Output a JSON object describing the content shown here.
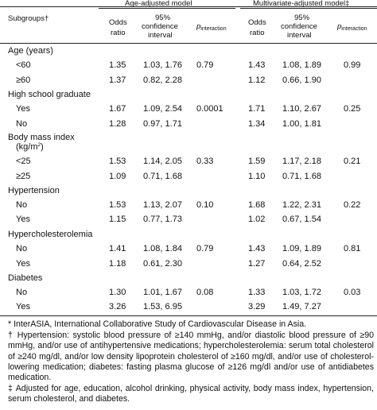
{
  "header": {
    "subgroups_label": "Subgroups†",
    "age_model_title": "Age-adjusted model",
    "multi_model_title": "Multivariate-adjusted model‡",
    "odds_label_1": "Odds",
    "odds_label_2": "ratio",
    "ci_label_1": "95%",
    "ci_label_2": "confidence",
    "ci_label_3": "interval",
    "p_label": "p",
    "p_sub": "interaction"
  },
  "groups": [
    {
      "title": "Age (years)",
      "rows": [
        {
          "label": "<60",
          "age_or": "1.35",
          "age_ci": "1.03, 1.76",
          "age_p": "0.79",
          "mv_or": "1.43",
          "mv_ci": "1.08, 1.89",
          "mv_p": "0.99"
        },
        {
          "label": "≥60",
          "age_or": "1.37",
          "age_ci": "0.82, 2.28",
          "age_p": "",
          "mv_or": "1.12",
          "mv_ci": "0.66, 1.90",
          "mv_p": ""
        }
      ]
    },
    {
      "title": "High school graduate",
      "rows": [
        {
          "label": "Yes",
          "age_or": "1.67",
          "age_ci": "1.09, 2.54",
          "age_p": "0.0001",
          "mv_or": "1.71",
          "mv_ci": "1.10, 2.67",
          "mv_p": "0.25"
        },
        {
          "label": "No",
          "age_or": "1.28",
          "age_ci": "0.97, 1.71",
          "age_p": "",
          "mv_or": "1.34",
          "mv_ci": "1.00, 1.81",
          "mv_p": ""
        }
      ]
    },
    {
      "title": "Body mass index",
      "title2": "(kg/m",
      "title2_sup": "2",
      "title2_end": ")",
      "rows": [
        {
          "label": "<25",
          "age_or": "1.53",
          "age_ci": "1.14, 2.05",
          "age_p": "0.33",
          "mv_or": "1.59",
          "mv_ci": "1.17, 2.18",
          "mv_p": "0.21"
        },
        {
          "label": "≥25",
          "age_or": "1.09",
          "age_ci": "0.71, 1.68",
          "age_p": "",
          "mv_or": "1.10",
          "mv_ci": "0.71, 1.68",
          "mv_p": ""
        }
      ]
    },
    {
      "title": "Hypertension",
      "rows": [
        {
          "label": "No",
          "age_or": "1.53",
          "age_ci": "1.13, 2.07",
          "age_p": "0.10",
          "mv_or": "1.68",
          "mv_ci": "1.22, 2.31",
          "mv_p": "0.22"
        },
        {
          "label": "Yes",
          "age_or": "1.15",
          "age_ci": "0.77, 1.73",
          "age_p": "",
          "mv_or": "1.02",
          "mv_ci": "0.67, 1.54",
          "mv_p": ""
        }
      ]
    },
    {
      "title": "Hypercholesterolemia",
      "rows": [
        {
          "label": "No",
          "age_or": "1.41",
          "age_ci": "1.08, 1.84",
          "age_p": "0.79",
          "mv_or": "1.43",
          "mv_ci": "1.09, 1.89",
          "mv_p": "0.81"
        },
        {
          "label": "Yes",
          "age_or": "1.18",
          "age_ci": "0.61, 2.30",
          "age_p": "",
          "mv_or": "1.27",
          "mv_ci": "0.64, 2.52",
          "mv_p": ""
        }
      ]
    },
    {
      "title": "Diabetes",
      "rows": [
        {
          "label": "No",
          "age_or": "1.30",
          "age_ci": "1.01, 1.67",
          "age_p": "0.08",
          "mv_or": "1.33",
          "mv_ci": "1.03, 1.72",
          "mv_p": "0.03"
        },
        {
          "label": "Yes",
          "age_or": "3.26",
          "age_ci": "1.53, 6.95",
          "age_p": "",
          "mv_or": "3.29",
          "mv_ci": "1.49, 7.27",
          "mv_p": ""
        }
      ]
    }
  ],
  "footnotes": {
    "note1": "* InterASIA, International Collaborative Study of Cardiovascular Disease in Asia.",
    "note2": "† Hypertension: systolic blood pressure of ≥140 mmHg, and/or diastolic blood pressure of ≥90 mmHg, and/or use of antihypertensive medications; hypercholesterolemia: serum total cholesterol of ≥240 mg/dl, and/or low density lipoprotein cholesterol of ≥160 mg/dl, and/or use of cholesterol-lowering medication; diabetes: fasting plasma glucose of ≥126 mg/dl and/or use of antidiabetes medication.",
    "note3": "‡ Adjusted for age, education, alcohol drinking, physical activity, body mass index, hypertension, serum cholesterol, and diabetes."
  }
}
